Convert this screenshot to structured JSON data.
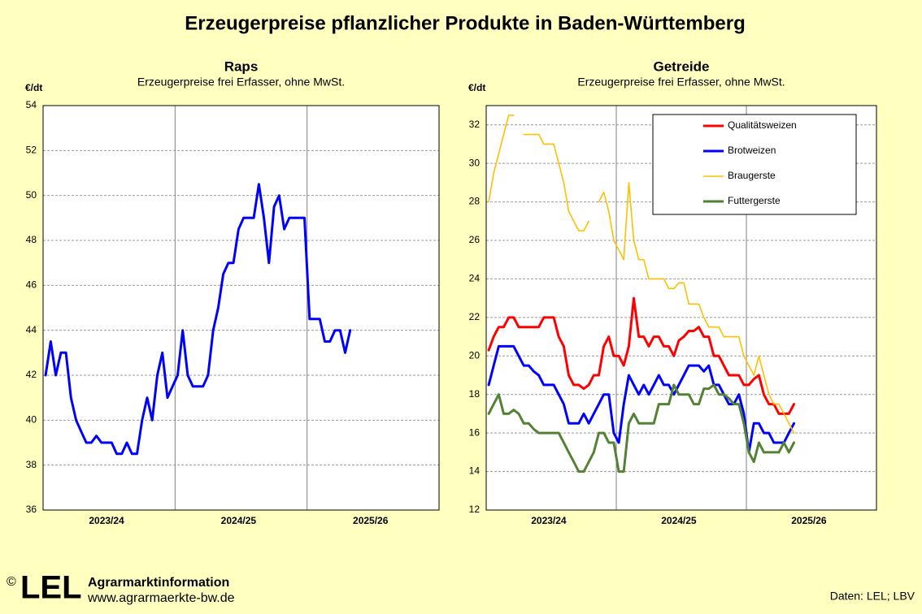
{
  "title": "Erzeugerpreise pflanzlicher Produkte in Baden-Württemberg",
  "footer": {
    "copyright": "©",
    "logo": "LEL",
    "org": "Agrarmarktinformation",
    "url": "www.agrarmaerkte-bw.de",
    "source": "Daten: LEL; LBV"
  },
  "chart_data": [
    {
      "type": "line",
      "title": "Raps",
      "subtitle": "Erzeugerpreise frei Erfasser, ohne MwSt.",
      "ylabel": "€/dt",
      "categories": [
        null,
        null,
        null,
        null,
        null,
        null,
        null,
        null,
        null,
        null,
        null,
        null,
        "2023/24",
        null,
        null,
        null,
        null,
        null,
        null,
        null,
        null,
        null,
        null,
        null,
        null,
        null,
        null,
        null,
        null,
        null,
        null,
        null,
        null,
        null,
        null,
        null,
        null,
        null,
        "2024/25",
        null,
        null,
        null,
        null,
        null,
        null,
        null,
        null,
        null,
        null,
        null,
        null,
        null,
        null,
        null,
        null,
        null,
        null,
        null,
        null,
        null,
        null,
        null,
        null,
        null,
        "2025/26",
        null,
        null,
        null,
        null,
        null,
        null,
        null,
        null,
        null,
        null,
        null,
        null,
        null
      ],
      "series": [
        {
          "color": "#0000ff",
          "values": [
            42,
            43.5,
            42,
            43,
            43,
            41,
            40,
            39.5,
            39,
            39,
            39.3,
            39,
            39,
            39,
            38.5,
            38.5,
            39,
            38.5,
            38.5,
            40,
            41,
            40,
            42,
            43,
            41,
            41.5,
            42,
            44,
            42,
            41.5,
            41.5,
            41.5,
            42,
            44,
            45,
            46.5,
            47,
            47,
            48.5,
            49,
            49,
            49,
            50.5,
            49,
            47,
            49.5,
            50,
            48.5,
            49,
            49,
            49,
            49,
            44.5,
            44.5,
            44.5,
            43.5,
            43.5,
            44,
            44,
            43,
            44,
            null,
            null,
            null,
            null,
            null,
            null,
            null,
            null,
            null,
            null,
            null,
            null,
            null,
            null,
            null,
            null,
            null
          ]
        }
      ],
      "ylim": [
        36,
        54
      ],
      "yticks": [
        36,
        38,
        40,
        42,
        44,
        46,
        48,
        50,
        52,
        54
      ],
      "grid": true
    },
    {
      "type": "line",
      "title": "Getreide",
      "subtitle": "Erzeugerpreise frei Erfasser, ohne MwSt.",
      "ylabel": "€/dt",
      "categories": [
        null,
        null,
        null,
        null,
        null,
        null,
        null,
        null,
        null,
        null,
        null,
        null,
        "2023/24",
        null,
        null,
        null,
        null,
        null,
        null,
        null,
        null,
        null,
        null,
        null,
        null,
        null,
        null,
        null,
        null,
        null,
        null,
        null,
        null,
        null,
        null,
        null,
        null,
        null,
        "2024/25",
        null,
        null,
        null,
        null,
        null,
        null,
        null,
        null,
        null,
        null,
        null,
        null,
        null,
        null,
        null,
        null,
        null,
        null,
        null,
        null,
        null,
        null,
        null,
        null,
        null,
        "2025/26",
        null,
        null,
        null,
        null,
        null,
        null,
        null,
        null,
        null,
        null,
        null,
        null,
        null
      ],
      "series": [
        {
          "name": "Qualitätsweizen",
          "color": "#ff0000",
          "width": 3,
          "values": [
            20.3,
            21,
            21.5,
            21.5,
            22,
            22,
            21.5,
            21.5,
            21.5,
            21.5,
            21.5,
            22,
            22,
            22,
            21,
            20.5,
            19,
            18.5,
            18.5,
            18.3,
            18.5,
            19,
            19,
            20.5,
            21,
            20,
            20,
            19.5,
            20.5,
            23,
            21,
            21,
            20.5,
            21,
            21,
            20.5,
            20.5,
            20,
            20.8,
            21,
            21.3,
            21.3,
            21.5,
            21,
            21,
            20,
            20,
            19.5,
            19,
            19,
            19,
            18.5,
            18.5,
            18.8,
            19,
            18,
            17.5,
            17.5,
            17,
            17,
            17,
            17.5,
            null,
            null,
            null,
            null,
            null,
            null,
            null,
            null,
            null,
            null,
            null,
            null,
            null,
            null,
            null,
            null
          ]
        },
        {
          "name": "Brotweizen",
          "color": "#0000ff",
          "width": 3,
          "values": [
            18.5,
            19.5,
            20.5,
            20.5,
            20.5,
            20.5,
            20,
            19.5,
            19.5,
            19.2,
            19,
            18.5,
            18.5,
            18.5,
            18,
            17.5,
            16.5,
            16.5,
            16.5,
            17,
            16.5,
            17,
            17.5,
            18,
            18,
            16,
            15.5,
            17.5,
            19,
            18.5,
            18,
            18.5,
            18,
            18.5,
            19,
            18.5,
            18.5,
            18,
            18.5,
            19,
            19.5,
            19.5,
            19.5,
            19.2,
            19.5,
            18.5,
            18.5,
            18,
            17.5,
            17.5,
            18,
            17,
            15,
            16.5,
            16.5,
            16,
            16,
            15.5,
            15.5,
            15.5,
            16,
            16.5,
            null,
            null,
            null,
            null,
            null,
            null,
            null,
            null,
            null,
            null,
            null,
            null,
            null,
            null,
            null,
            null
          ]
        },
        {
          "name": "Braugerste",
          "color": "#ffc000",
          "width": 1.6,
          "values": [
            28,
            29.5,
            30.5,
            31.5,
            32.5,
            32.5,
            null,
            31.5,
            31.5,
            31.5,
            31.5,
            31,
            31,
            31,
            30,
            29,
            27.5,
            27,
            26.5,
            26.5,
            27,
            null,
            28,
            28.5,
            27.5,
            26,
            25.5,
            25,
            29,
            26,
            25,
            25,
            24,
            24,
            24,
            24,
            23.5,
            23.5,
            23.8,
            23.8,
            22.7,
            22.7,
            22.7,
            22,
            21.5,
            21.5,
            21.5,
            21,
            21,
            21,
            21,
            20,
            19.5,
            19,
            20,
            19,
            18,
            17.5,
            17.5,
            17,
            16.5,
            16,
            null,
            null,
            null,
            null,
            null,
            null,
            null,
            null,
            null,
            null,
            null,
            null,
            null,
            null,
            null,
            null
          ]
        },
        {
          "name": "Futtergerste",
          "color": "#548235",
          "width": 3,
          "values": [
            17,
            17.5,
            18,
            17,
            17,
            17.2,
            17,
            16.5,
            16.5,
            16.2,
            16,
            16,
            16,
            16,
            16,
            15.5,
            15,
            14.5,
            14,
            14,
            14.5,
            15,
            16,
            16,
            15.5,
            15.5,
            14,
            14,
            16.5,
            17,
            16.5,
            16.5,
            16.5,
            16.5,
            17.5,
            17.5,
            17.5,
            18.5,
            18,
            18,
            18,
            17.5,
            17.5,
            18.3,
            18.3,
            18.5,
            18,
            18,
            17.8,
            17.5,
            17.5,
            16.5,
            15,
            14.5,
            15.5,
            15,
            15,
            15,
            15,
            15.5,
            15,
            15.5,
            null,
            null,
            null,
            null,
            null,
            null,
            null,
            null,
            null,
            null,
            null,
            null,
            null,
            null,
            null,
            null
          ]
        }
      ],
      "ylim": [
        12,
        33
      ],
      "yticks": [
        12,
        14,
        16,
        18,
        20,
        22,
        24,
        26,
        28,
        30,
        32
      ],
      "grid": true,
      "legend": "upper right"
    }
  ]
}
